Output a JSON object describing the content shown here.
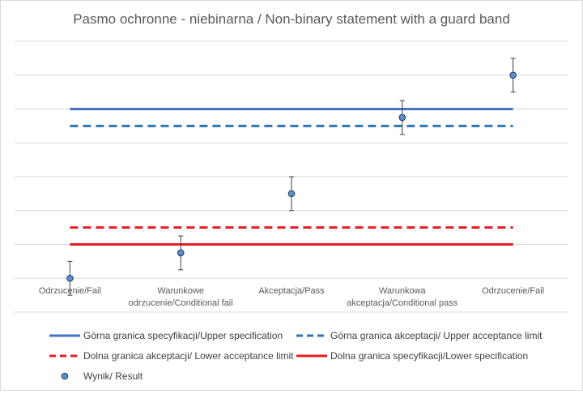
{
  "chart_data": {
    "type": "line",
    "title": "Pasmo ochronne - niebinarna / Non-binary statement with a guard band",
    "categories": [
      [
        "Odrzucenie/Fail"
      ],
      [
        "Warunkowe",
        "odrzucenie/Conditional fail"
      ],
      [
        "Akceptacja/Pass"
      ],
      [
        "Warunkowa",
        "akceptacja/Conditional pass"
      ],
      [
        "Odrzucenie/Fail"
      ]
    ],
    "ylim": [
      0,
      8
    ],
    "grid": true,
    "legend_position": "bottom",
    "series": [
      {
        "name": "Górna granica specyfikacji/Upper specification",
        "kind": "line",
        "style": "solid",
        "color": "#4472c4",
        "values": [
          6,
          6,
          6,
          6,
          6
        ]
      },
      {
        "name": "Górna granica akceptacji/ Upper acceptance limit",
        "kind": "line",
        "style": "dashed",
        "color": "#2e75b6",
        "values": [
          5.5,
          5.5,
          5.5,
          5.5,
          5.5
        ]
      },
      {
        "name": "Dolna granica akceptacji/ Lower acceptance limit",
        "kind": "line",
        "style": "dashed",
        "color": "#e81c24",
        "values": [
          2.5,
          2.5,
          2.5,
          2.5,
          2.5
        ]
      },
      {
        "name": "Dolna granica specyfikacji/Lower specification",
        "kind": "line",
        "style": "solid",
        "color": "#e81c24",
        "values": [
          2,
          2,
          2,
          2,
          2
        ]
      },
      {
        "name": "Wynik/ Result",
        "kind": "scatter",
        "color": "#5b8fc9",
        "values": [
          1,
          1.75,
          3.5,
          5.75,
          7
        ],
        "error": [
          0.5,
          0.5,
          0.5,
          0.5,
          0.5
        ]
      }
    ]
  }
}
